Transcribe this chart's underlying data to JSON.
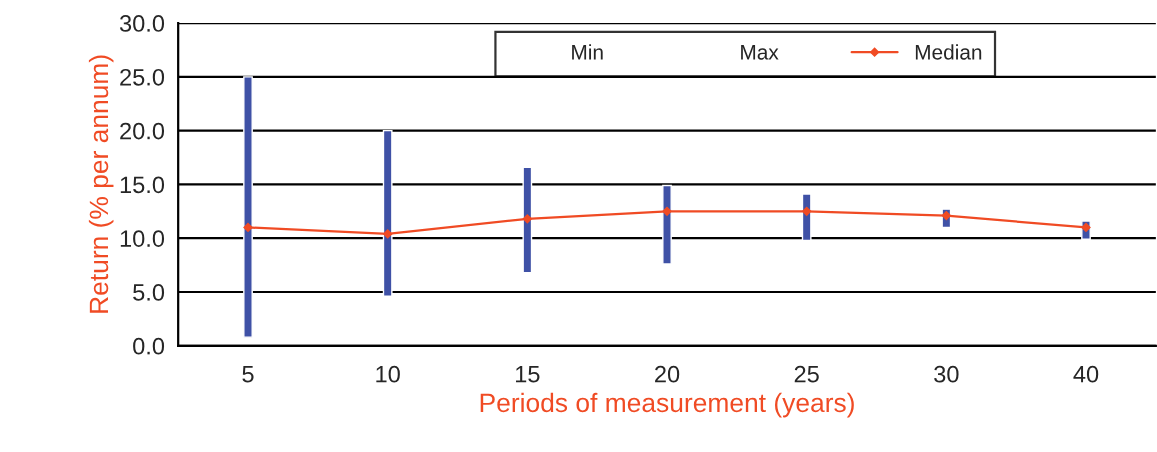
{
  "chart_data": {
    "type": "bar",
    "xlabel": "Periods of measurement (years)",
    "ylabel": "Return (% per annum)",
    "categories": [
      "5",
      "10",
      "15",
      "20",
      "25",
      "30",
      "40"
    ],
    "series": [
      {
        "color": "#3f51a6",
        "base": [
          0.8,
          4.6,
          6.8,
          7.6,
          9.8,
          11.0,
          9.9
        ],
        "values": [
          24.2,
          15.4,
          9.8,
          7.3,
          4.3,
          1.7,
          1.7
        ]
      },
      {
        "type": "line",
        "name": "Median",
        "color": "#f04b24",
        "marker": "diamond",
        "values": [
          11.0,
          10.4,
          11.8,
          12.5,
          12.5,
          12.1,
          11.0
        ]
      }
    ],
    "annotations": [
      "Min",
      "Max"
    ],
    "ylim": [
      0,
      30
    ],
    "yticks": [
      {
        "value": 0,
        "label": "0.0"
      },
      {
        "value": 5,
        "label": "5.0"
      },
      {
        "value": 10,
        "label": "10.0"
      },
      {
        "value": 15,
        "label": "15.0"
      },
      {
        "value": 20,
        "label": "20.0"
      },
      {
        "value": 25,
        "label": "25.0"
      },
      {
        "value": 30,
        "label": "30.0"
      }
    ],
    "grid": "y",
    "legend": "top"
  }
}
